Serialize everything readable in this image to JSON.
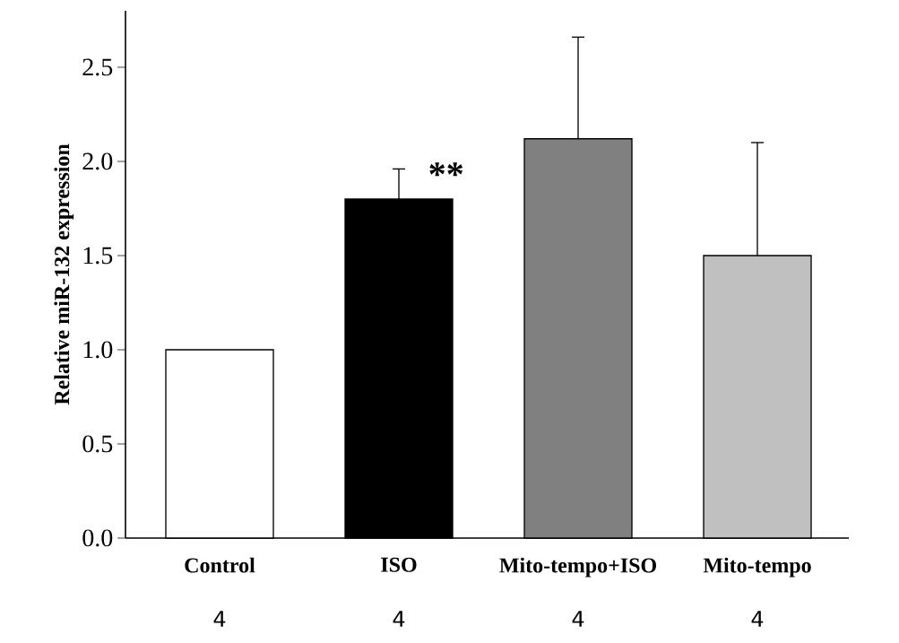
{
  "chart_data": {
    "type": "bar",
    "ylabel": "Relative miR-132 expression",
    "categories": [
      "Control",
      "ISO",
      "Mito-tempo+ISO",
      "Mito-tempo"
    ],
    "values": [
      1.0,
      1.8,
      2.12,
      1.5
    ],
    "colors": [
      "#ffffff",
      "#000000",
      "#808080",
      "#c0c0c0"
    ],
    "errors": [
      null,
      [
        1.8,
        1.96
      ],
      [
        2.12,
        2.66
      ],
      [
        1.5,
        2.1
      ]
    ],
    "ylim": [
      0,
      2.8
    ],
    "yticks": [
      {
        "value": 0,
        "label": "0.0"
      },
      {
        "value": 0.5,
        "label": "0.5"
      },
      {
        "value": 1,
        "label": "1.0"
      },
      {
        "value": 1.5,
        "label": "1.5"
      },
      {
        "value": 2,
        "label": "2.0"
      },
      {
        "value": 2.5,
        "label": "2.5"
      }
    ],
    "grid": false,
    "annotations": [
      "**",
      "4",
      "4",
      "4",
      "4"
    ]
  }
}
